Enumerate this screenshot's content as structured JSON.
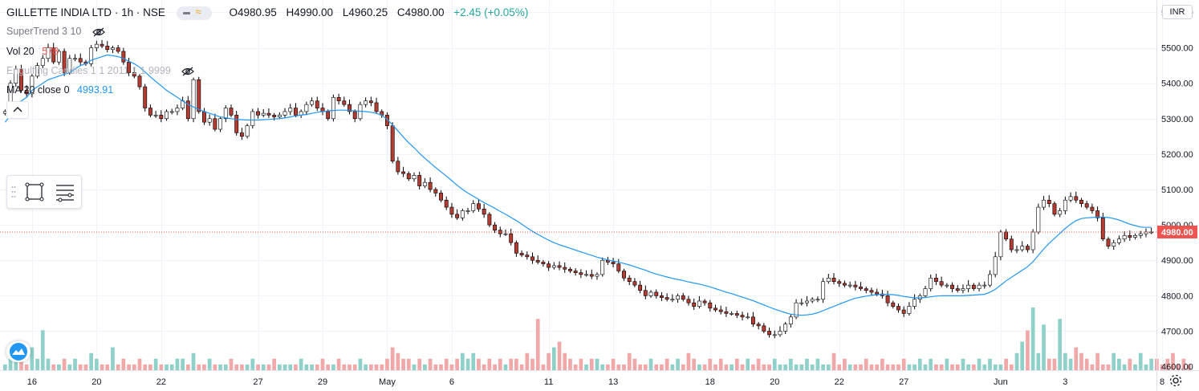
{
  "header": {
    "symbol": "GILLETTE INDIA LTD",
    "sep1": "·",
    "interval": "1h",
    "sep2": "·",
    "exchange": "NSE",
    "open": "O4980.95",
    "high": "H4990.00",
    "low": "L4960.25",
    "close": "C4980.00",
    "change": "+2.45 (+0.05%)"
  },
  "indicators": {
    "supertrend": {
      "label": "SuperTrend 3 10"
    },
    "volume": {
      "label": "Vol 20",
      "value": "578"
    },
    "engulfing": {
      "label": "Engulfing Candles 1 1 2011 1 1 9999"
    },
    "ma": {
      "label": "MA 20 close 0",
      "value": "4993.91"
    }
  },
  "currency_badge": "INR",
  "colors": {
    "up": "#26a69a",
    "down": "#ef5350",
    "candle_body_down": "#b23b32",
    "candle_border": "#000000",
    "ma_line": "#2196f3",
    "vol_up": "#8fd0c9",
    "vol_down": "#f0a8a8",
    "grid": "#f0f3fa",
    "price_line": "#ef5350",
    "last_price_badge": "#ef5350"
  },
  "icons": [
    "eye-off-icon",
    "chevron-up-icon",
    "rectangle-tool-icon",
    "lines-tool-icon",
    "tradingview-logo-icon",
    "settings-gear-icon"
  ],
  "chart_data": {
    "type": "candlestick",
    "title": "GILLETTE INDIA LTD · 1h · NSE",
    "y_axis": {
      "ticks": [
        "5600.00",
        "5500.00",
        "5400.00",
        "5300.00",
        "5200.00",
        "5100.00",
        "5000.00",
        "4900.00",
        "4800.00",
        "4700.00",
        "4600.00"
      ],
      "range": [
        4590,
        5635
      ]
    },
    "x_axis": {
      "ticks": [
        {
          "label": "16",
          "index": 5
        },
        {
          "label": "20",
          "index": 17
        },
        {
          "label": "22",
          "index": 29
        },
        {
          "label": "27",
          "index": 47
        },
        {
          "label": "29",
          "index": 59
        },
        {
          "label": "May",
          "index": 71
        },
        {
          "label": "6",
          "index": 83
        },
        {
          "label": "11",
          "index": 101
        },
        {
          "label": "13",
          "index": 113
        },
        {
          "label": "18",
          "index": 131
        },
        {
          "label": "20",
          "index": 143
        },
        {
          "label": "22",
          "index": 155
        },
        {
          "label": "27",
          "index": 167
        },
        {
          "label": "Jun",
          "index": 185
        },
        {
          "label": "3",
          "index": 197
        },
        {
          "label": "8",
          "index": 215
        }
      ]
    },
    "last_price": "4980.00",
    "grid": true,
    "series": [
      {
        "name": "Price",
        "type": "candlestick",
        "close": [
          5320,
          5400,
          5440,
          5380,
          5370,
          5420,
          5450,
          5470,
          5500,
          5460,
          5490,
          5430,
          5470,
          5470,
          5460,
          5455,
          5500,
          5510,
          5505,
          5495,
          5500,
          5490,
          5460,
          5430,
          5420,
          5390,
          5330,
          5310,
          5310,
          5300,
          5320,
          5320,
          5330,
          5350,
          5300,
          5410,
          5320,
          5290,
          5300,
          5270,
          5300,
          5330,
          5310,
          5260,
          5250,
          5280,
          5320,
          5310,
          5315,
          5310,
          5305,
          5310,
          5320,
          5330,
          5310,
          5320,
          5340,
          5350,
          5330,
          5320,
          5300,
          5360,
          5350,
          5340,
          5320,
          5300,
          5340,
          5350,
          5345,
          5320,
          5310,
          5280,
          5180,
          5150,
          5145,
          5130,
          5140,
          5110,
          5120,
          5100,
          5090,
          5070,
          5050,
          5030,
          5020,
          5040,
          5040,
          5060,
          5045,
          5030,
          5000,
          4985,
          4975,
          4975,
          4950,
          4920,
          4915,
          4910,
          4900,
          4895,
          4890,
          4880,
          4885,
          4880,
          4875,
          4870,
          4865,
          4860,
          4860,
          4855,
          4860,
          4900,
          4895,
          4890,
          4870,
          4850,
          4840,
          4830,
          4815,
          4800,
          4810,
          4800,
          4795,
          4790,
          4790,
          4800,
          4790,
          4780,
          4770,
          4785,
          4780,
          4765,
          4760,
          4755,
          4750,
          4750,
          4745,
          4740,
          4740,
          4720,
          4715,
          4700,
          4690,
          4690,
          4700,
          4720,
          4740,
          4780,
          4780,
          4785,
          4790,
          4790,
          4840,
          4850,
          4840,
          4835,
          4830,
          4830,
          4825,
          4820,
          4815,
          4810,
          4805,
          4800,
          4780,
          4770,
          4760,
          4750,
          4770,
          4790,
          4800,
          4820,
          4850,
          4840,
          4830,
          4830,
          4820,
          4815,
          4820,
          4830,
          4820,
          4830,
          4830,
          4860,
          4910,
          4980,
          4960,
          4930,
          4930,
          4940,
          4930,
          4980,
          5050,
          5070,
          5060,
          5030,
          5040,
          5070,
          5080,
          5070,
          5060,
          5050,
          5040,
          5020,
          4960,
          4940,
          4950,
          4960,
          4970,
          4965,
          4970,
          4975,
          4980,
          4980
        ]
      },
      {
        "name": "MA 20 close 0",
        "type": "line",
        "values": [
          5290,
          5310,
          5330,
          5350,
          5360,
          5380,
          5390,
          5400,
          5410,
          5415,
          5420,
          5425,
          5430,
          5440,
          5450,
          5455,
          5465,
          5470,
          5475,
          5480,
          5478,
          5475,
          5470,
          5462,
          5455,
          5445,
          5432,
          5418,
          5405,
          5393,
          5380,
          5370,
          5360,
          5350,
          5340,
          5333,
          5326,
          5320,
          5315,
          5310,
          5305,
          5302,
          5300,
          5298,
          5297,
          5296,
          5296,
          5296,
          5297,
          5298,
          5299,
          5300,
          5302,
          5305,
          5308,
          5310,
          5312,
          5315,
          5318,
          5320,
          5322,
          5323,
          5324,
          5324,
          5323,
          5322,
          5321,
          5320,
          5318,
          5315,
          5310,
          5298,
          5282,
          5265,
          5248,
          5232,
          5218,
          5202,
          5188,
          5175,
          5162,
          5150,
          5138,
          5125,
          5112,
          5100,
          5090,
          5081,
          5072,
          5063,
          5055,
          5047,
          5038,
          5030,
          5021,
          5012,
          5002,
          4992,
          4982,
          4973,
          4965,
          4957,
          4950,
          4944,
          4939,
          4934,
          4929,
          4924,
          4919,
          4914,
          4909,
          4905,
          4901,
          4898,
          4895,
          4891,
          4887,
          4882,
          4877,
          4872,
          4866,
          4861,
          4857,
          4853,
          4849,
          4846,
          4843,
          4839,
          4836,
          4833,
          4829,
          4825,
          4820,
          4815,
          4810,
          4806,
          4801,
          4796,
          4791,
          4786,
          4780,
          4774,
          4768,
          4762,
          4757,
          4752,
          4748,
          4746,
          4745,
          4746,
          4748,
          4752,
          4758,
          4764,
          4770,
          4776,
          4782,
          4788,
          4793,
          4796,
          4799,
          4801,
          4803,
          4804,
          4804,
          4803,
          4801,
          4798,
          4796,
          4794,
          4794,
          4795,
          4797,
          4799,
          4800,
          4800,
          4800,
          4800,
          4800,
          4801,
          4802,
          4803,
          4804,
          4810,
          4818,
          4830,
          4842,
          4852,
          4862,
          4872,
          4882,
          4896,
          4914,
          4932,
          4948,
          4962,
          4976,
          4990,
          5002,
          5012,
          5018,
          5020,
          5021,
          5022,
          5022,
          5021,
          5018,
          5014,
          5008,
          5002,
          4998,
          4994,
          4993,
          4993
        ]
      },
      {
        "name": "Vol 20",
        "type": "bar",
        "values": [
          1,
          2,
          3,
          2,
          1,
          4,
          2,
          7,
          2,
          1,
          1,
          2,
          1,
          2,
          1,
          1,
          3,
          2,
          1,
          1,
          4,
          1,
          2,
          1,
          1,
          2,
          1,
          1,
          2,
          1,
          1,
          1,
          2,
          2,
          1,
          3,
          1,
          1,
          2,
          1,
          1,
          1,
          2,
          1,
          1,
          1,
          2,
          1,
          1,
          1,
          2,
          1,
          1,
          1,
          1,
          2,
          1,
          1,
          1,
          2,
          1,
          1,
          2,
          1,
          1,
          1,
          2,
          1,
          1,
          1,
          1,
          2,
          4,
          3,
          2,
          2,
          1,
          2,
          1,
          2,
          1,
          1,
          2,
          1,
          2,
          3,
          2,
          3,
          2,
          1,
          2,
          1,
          2,
          1,
          2,
          2,
          1,
          3,
          2,
          9,
          1,
          3,
          4,
          5,
          3,
          2,
          1,
          2,
          1,
          2,
          2,
          1,
          1,
          2,
          1,
          1,
          3,
          2,
          1,
          1,
          2,
          1,
          1,
          2,
          1,
          2,
          1,
          3,
          2,
          1,
          1,
          2,
          1,
          2,
          1,
          1,
          2,
          1,
          2,
          1,
          2,
          1,
          1,
          2,
          1,
          1,
          2,
          1,
          1,
          2,
          1,
          2,
          1,
          1,
          3,
          1,
          2,
          1,
          1,
          1,
          2,
          1,
          1,
          2,
          1,
          1,
          1,
          2,
          1,
          1,
          2,
          1,
          2,
          1,
          1,
          2,
          1,
          1,
          2,
          1,
          1,
          2,
          1,
          2,
          1,
          1,
          2,
          1,
          3,
          5,
          7,
          11,
          3,
          8,
          2,
          2,
          9,
          3,
          2,
          4,
          3,
          2,
          1,
          3,
          1,
          1,
          3,
          2,
          1,
          2,
          1,
          3,
          1,
          2,
          2,
          1,
          2,
          3,
          1,
          2,
          1
        ]
      }
    ]
  }
}
